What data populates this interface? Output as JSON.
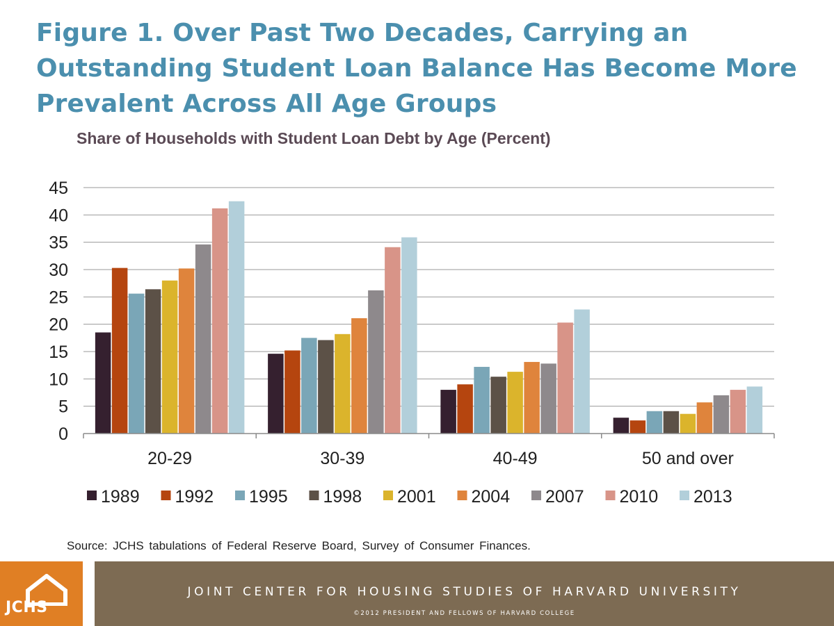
{
  "slide": {
    "title": "Figure 1. Over Past Two Decades, Carrying an Outstanding Student Loan Balance Has Become More Prevalent Across All Age Groups",
    "source": "Source: JCHS tabulations of Federal Reserve Board, Survey of Consumer Finances."
  },
  "footer": {
    "logo_text": "JCHS",
    "org_name": "JOINT CENTER FOR HOUSING STUDIES OF HARVARD UNIVERSITY",
    "copyright": "©2012 PRESIDENT AND FELLOWS OF HARVARD COLLEGE",
    "logo_color": "#e07f24",
    "band_color": "#7d6b53"
  },
  "chart_data": {
    "type": "bar",
    "title": "Share of Households with Student Loan Debt by Age (Percent)",
    "xlabel": "",
    "ylabel": "",
    "ylim": [
      0,
      45
    ],
    "yticks": [
      0,
      5,
      10,
      15,
      20,
      25,
      30,
      35,
      40,
      45
    ],
    "grid": true,
    "legend_position": "bottom",
    "categories": [
      "20-29",
      "30-39",
      "40-49",
      "50 and over"
    ],
    "series": [
      {
        "name": "1989",
        "color": "#35202f",
        "values": [
          18.5,
          14.6,
          8.0,
          2.9
        ]
      },
      {
        "name": "1992",
        "color": "#b5450f",
        "values": [
          30.3,
          15.2,
          9.0,
          2.4
        ]
      },
      {
        "name": "1995",
        "color": "#7aa6b7",
        "values": [
          25.6,
          17.5,
          12.2,
          4.1
        ]
      },
      {
        "name": "1998",
        "color": "#5c5147",
        "values": [
          26.4,
          17.1,
          10.4,
          4.1
        ]
      },
      {
        "name": "2001",
        "color": "#dbb42c",
        "values": [
          28.0,
          18.2,
          11.3,
          3.6
        ]
      },
      {
        "name": "2004",
        "color": "#df843c",
        "values": [
          30.2,
          21.1,
          13.1,
          5.7
        ]
      },
      {
        "name": "2007",
        "color": "#8e898c",
        "values": [
          34.6,
          26.2,
          12.8,
          7.0
        ]
      },
      {
        "name": "2010",
        "color": "#d89488",
        "values": [
          41.2,
          34.1,
          20.3,
          8.0
        ]
      },
      {
        "name": "2013",
        "color": "#b2cfda",
        "values": [
          42.5,
          35.9,
          22.7,
          8.6
        ]
      }
    ]
  }
}
